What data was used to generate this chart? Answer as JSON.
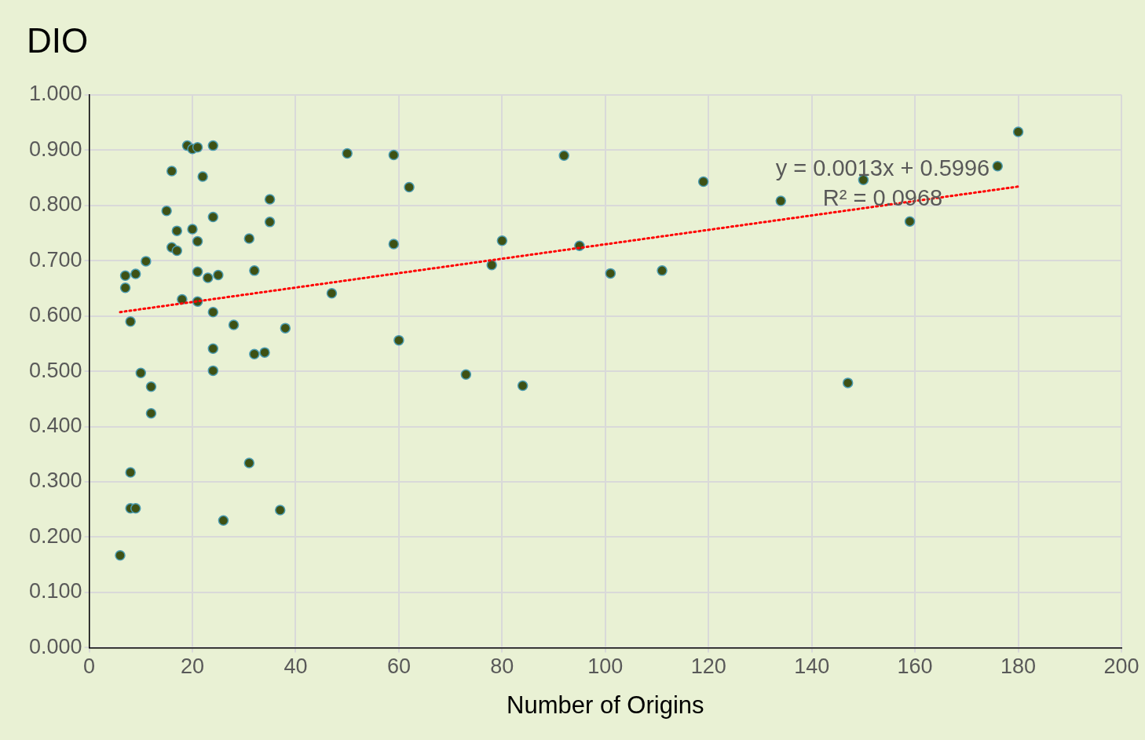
{
  "chart_data": {
    "type": "scatter",
    "title": "DIO",
    "xlabel": "Number of Origins",
    "xlim": [
      0,
      200
    ],
    "xticks": [
      0,
      20,
      40,
      60,
      80,
      100,
      120,
      140,
      160,
      180,
      200
    ],
    "ylim": [
      0,
      1
    ],
    "yticks": [
      {
        "value": 0,
        "label": "0.000"
      },
      {
        "value": 0.1,
        "label": "0.100"
      },
      {
        "value": 0.2,
        "label": "0.200"
      },
      {
        "value": 0.3,
        "label": "0.300"
      },
      {
        "value": 0.4,
        "label": "0.400"
      },
      {
        "value": 0.5,
        "label": "0.500"
      },
      {
        "value": 0.6,
        "label": "0.600"
      },
      {
        "value": 0.7,
        "label": "0.700"
      },
      {
        "value": 0.8,
        "label": "0.800"
      },
      {
        "value": 0.9,
        "label": "0.900"
      },
      {
        "value": 1,
        "label": "1.000"
      }
    ],
    "grid": true,
    "legend": false,
    "marker": "circle",
    "series": [
      {
        "type": "scatter",
        "color": "#3e5114",
        "x": [
          6,
          7,
          7,
          8,
          8,
          8,
          9,
          9,
          10,
          11,
          12,
          12,
          15,
          16,
          16,
          17,
          17,
          18,
          19,
          20,
          20,
          21,
          21,
          21,
          21,
          22,
          23,
          24,
          24,
          24,
          24,
          24,
          25,
          26,
          28,
          31,
          31,
          32,
          32,
          34,
          35,
          35,
          37,
          38,
          47,
          50,
          59,
          59,
          60,
          62,
          73,
          78,
          80,
          84,
          92,
          95,
          101,
          111,
          119,
          134,
          147,
          150,
          159,
          176,
          180
        ],
        "values": [
          0.167,
          0.673,
          0.651,
          0.59,
          0.317,
          0.252,
          0.676,
          0.252,
          0.497,
          0.699,
          0.472,
          0.424,
          0.79,
          0.862,
          0.724,
          0.754,
          0.718,
          0.63,
          0.908,
          0.902,
          0.757,
          0.905,
          0.735,
          0.68,
          0.626,
          0.852,
          0.669,
          0.908,
          0.779,
          0.607,
          0.541,
          0.501,
          0.674,
          0.23,
          0.584,
          0.74,
          0.334,
          0.682,
          0.531,
          0.534,
          0.811,
          0.77,
          0.249,
          0.578,
          0.641,
          0.894,
          0.891,
          0.73,
          0.556,
          0.833,
          0.494,
          0.692,
          0.736,
          0.474,
          0.89,
          0.727,
          0.677,
          0.682,
          0.843,
          0.808,
          0.479,
          0.846,
          0.771,
          0.871,
          0.933
        ]
      },
      {
        "type": "line",
        "color": "#ff0000",
        "line_style": "dotted",
        "marker": "none",
        "x": [
          6,
          180
        ],
        "values": [
          0.607,
          0.834
        ]
      }
    ],
    "annotations": [
      "y = 0.0013x + 0.5996",
      "R² = 0.0968"
    ]
  }
}
